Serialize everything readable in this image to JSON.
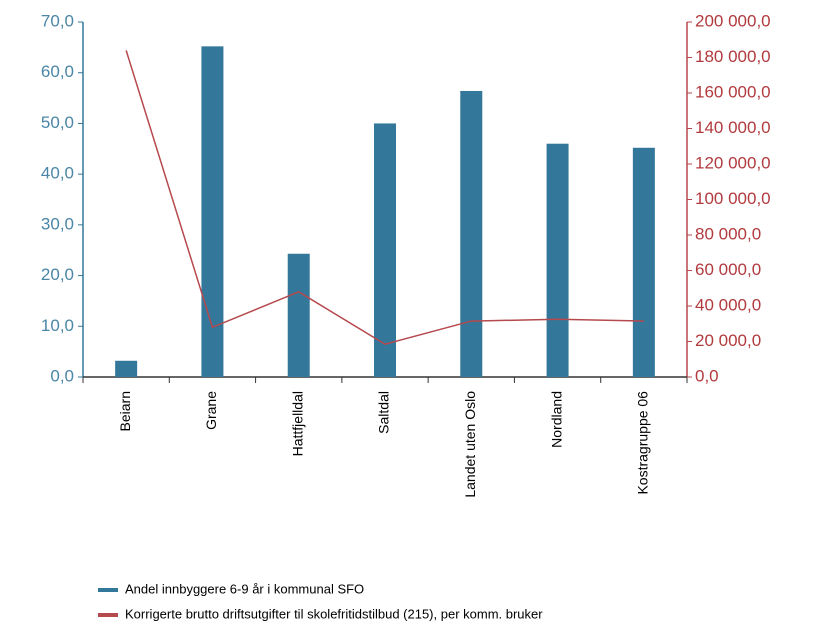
{
  "chart_data": {
    "type": "bar-line",
    "categories": [
      "Beiarn",
      "Grane",
      "Hattfjelldal",
      "Saltdal",
      "Landet uten Oslo",
      "Nordland",
      "Kostragruppe 06"
    ],
    "series": [
      {
        "name": "Andel innbyggere 6-9 år i kommunal SFO",
        "color": "#33789a",
        "type": "bar",
        "values": [
          3.2,
          65.2,
          24.3,
          50.0,
          56.4,
          46.0,
          45.2
        ]
      },
      {
        "name": "Korrigerte brutto driftsutgifter til skolefritidstilbud (215), per komm. bruker",
        "color": "#b5494d",
        "type": "line",
        "axis": "y2",
        "values": [
          184000,
          28000,
          48000,
          18500,
          31500,
          32500,
          31500
        ]
      }
    ],
    "ylim": [
      0,
      70
    ],
    "yticks": [
      {
        "value": 0,
        "label": "0,0"
      },
      {
        "value": 10,
        "label": "10,0"
      },
      {
        "value": 20,
        "label": "20,0"
      },
      {
        "value": 30,
        "label": "30,0"
      },
      {
        "value": 40,
        "label": "40,0"
      },
      {
        "value": 50,
        "label": "50,0"
      },
      {
        "value": 60,
        "label": "60,0"
      },
      {
        "value": 70,
        "label": "70,0"
      }
    ],
    "y2lim": [
      0,
      200000
    ],
    "y2ticks": [
      {
        "value": 0,
        "label": "0,0"
      },
      {
        "value": 20000,
        "label": "20 000,0"
      },
      {
        "value": 40000,
        "label": "40 000,0"
      },
      {
        "value": 60000,
        "label": "60 000,0"
      },
      {
        "value": 80000,
        "label": "80 000,0"
      },
      {
        "value": 100000,
        "label": "100 000,0"
      },
      {
        "value": 120000,
        "label": "120 000,0"
      },
      {
        "value": 140000,
        "label": "140 000,0"
      },
      {
        "value": 160000,
        "label": "160 000,0"
      },
      {
        "value": 180000,
        "label": "180 000,0"
      },
      {
        "value": 200000,
        "label": "200 000,0"
      }
    ],
    "grid": false,
    "legend": "bottom"
  }
}
